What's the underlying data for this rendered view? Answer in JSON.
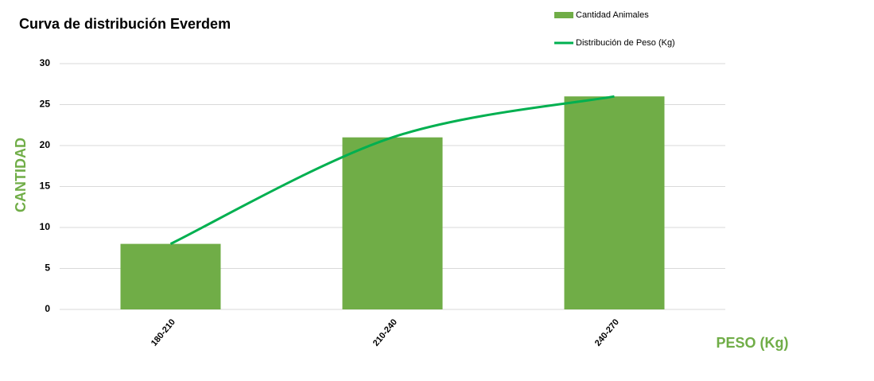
{
  "chart_data": {
    "type": "combo",
    "title": "Curva de distribución Everdem",
    "y_label": "CANTIDAD",
    "x_label": "PESO (Kg)",
    "categories": [
      "180-210",
      "210-240",
      "240-270"
    ],
    "series": [
      {
        "name": "Cantidad Animales",
        "type": "bar",
        "color": "#70ad47",
        "values": [
          8,
          21,
          26
        ]
      },
      {
        "name": "Distribución de Peso (Kg)",
        "type": "line",
        "color": "#00b050",
        "values": [
          8,
          21,
          26
        ]
      }
    ],
    "ylim": [
      0,
      30
    ],
    "yticks": [
      0,
      5,
      10,
      15,
      20,
      25,
      30
    ],
    "grid": true,
    "legend": "top-right"
  }
}
